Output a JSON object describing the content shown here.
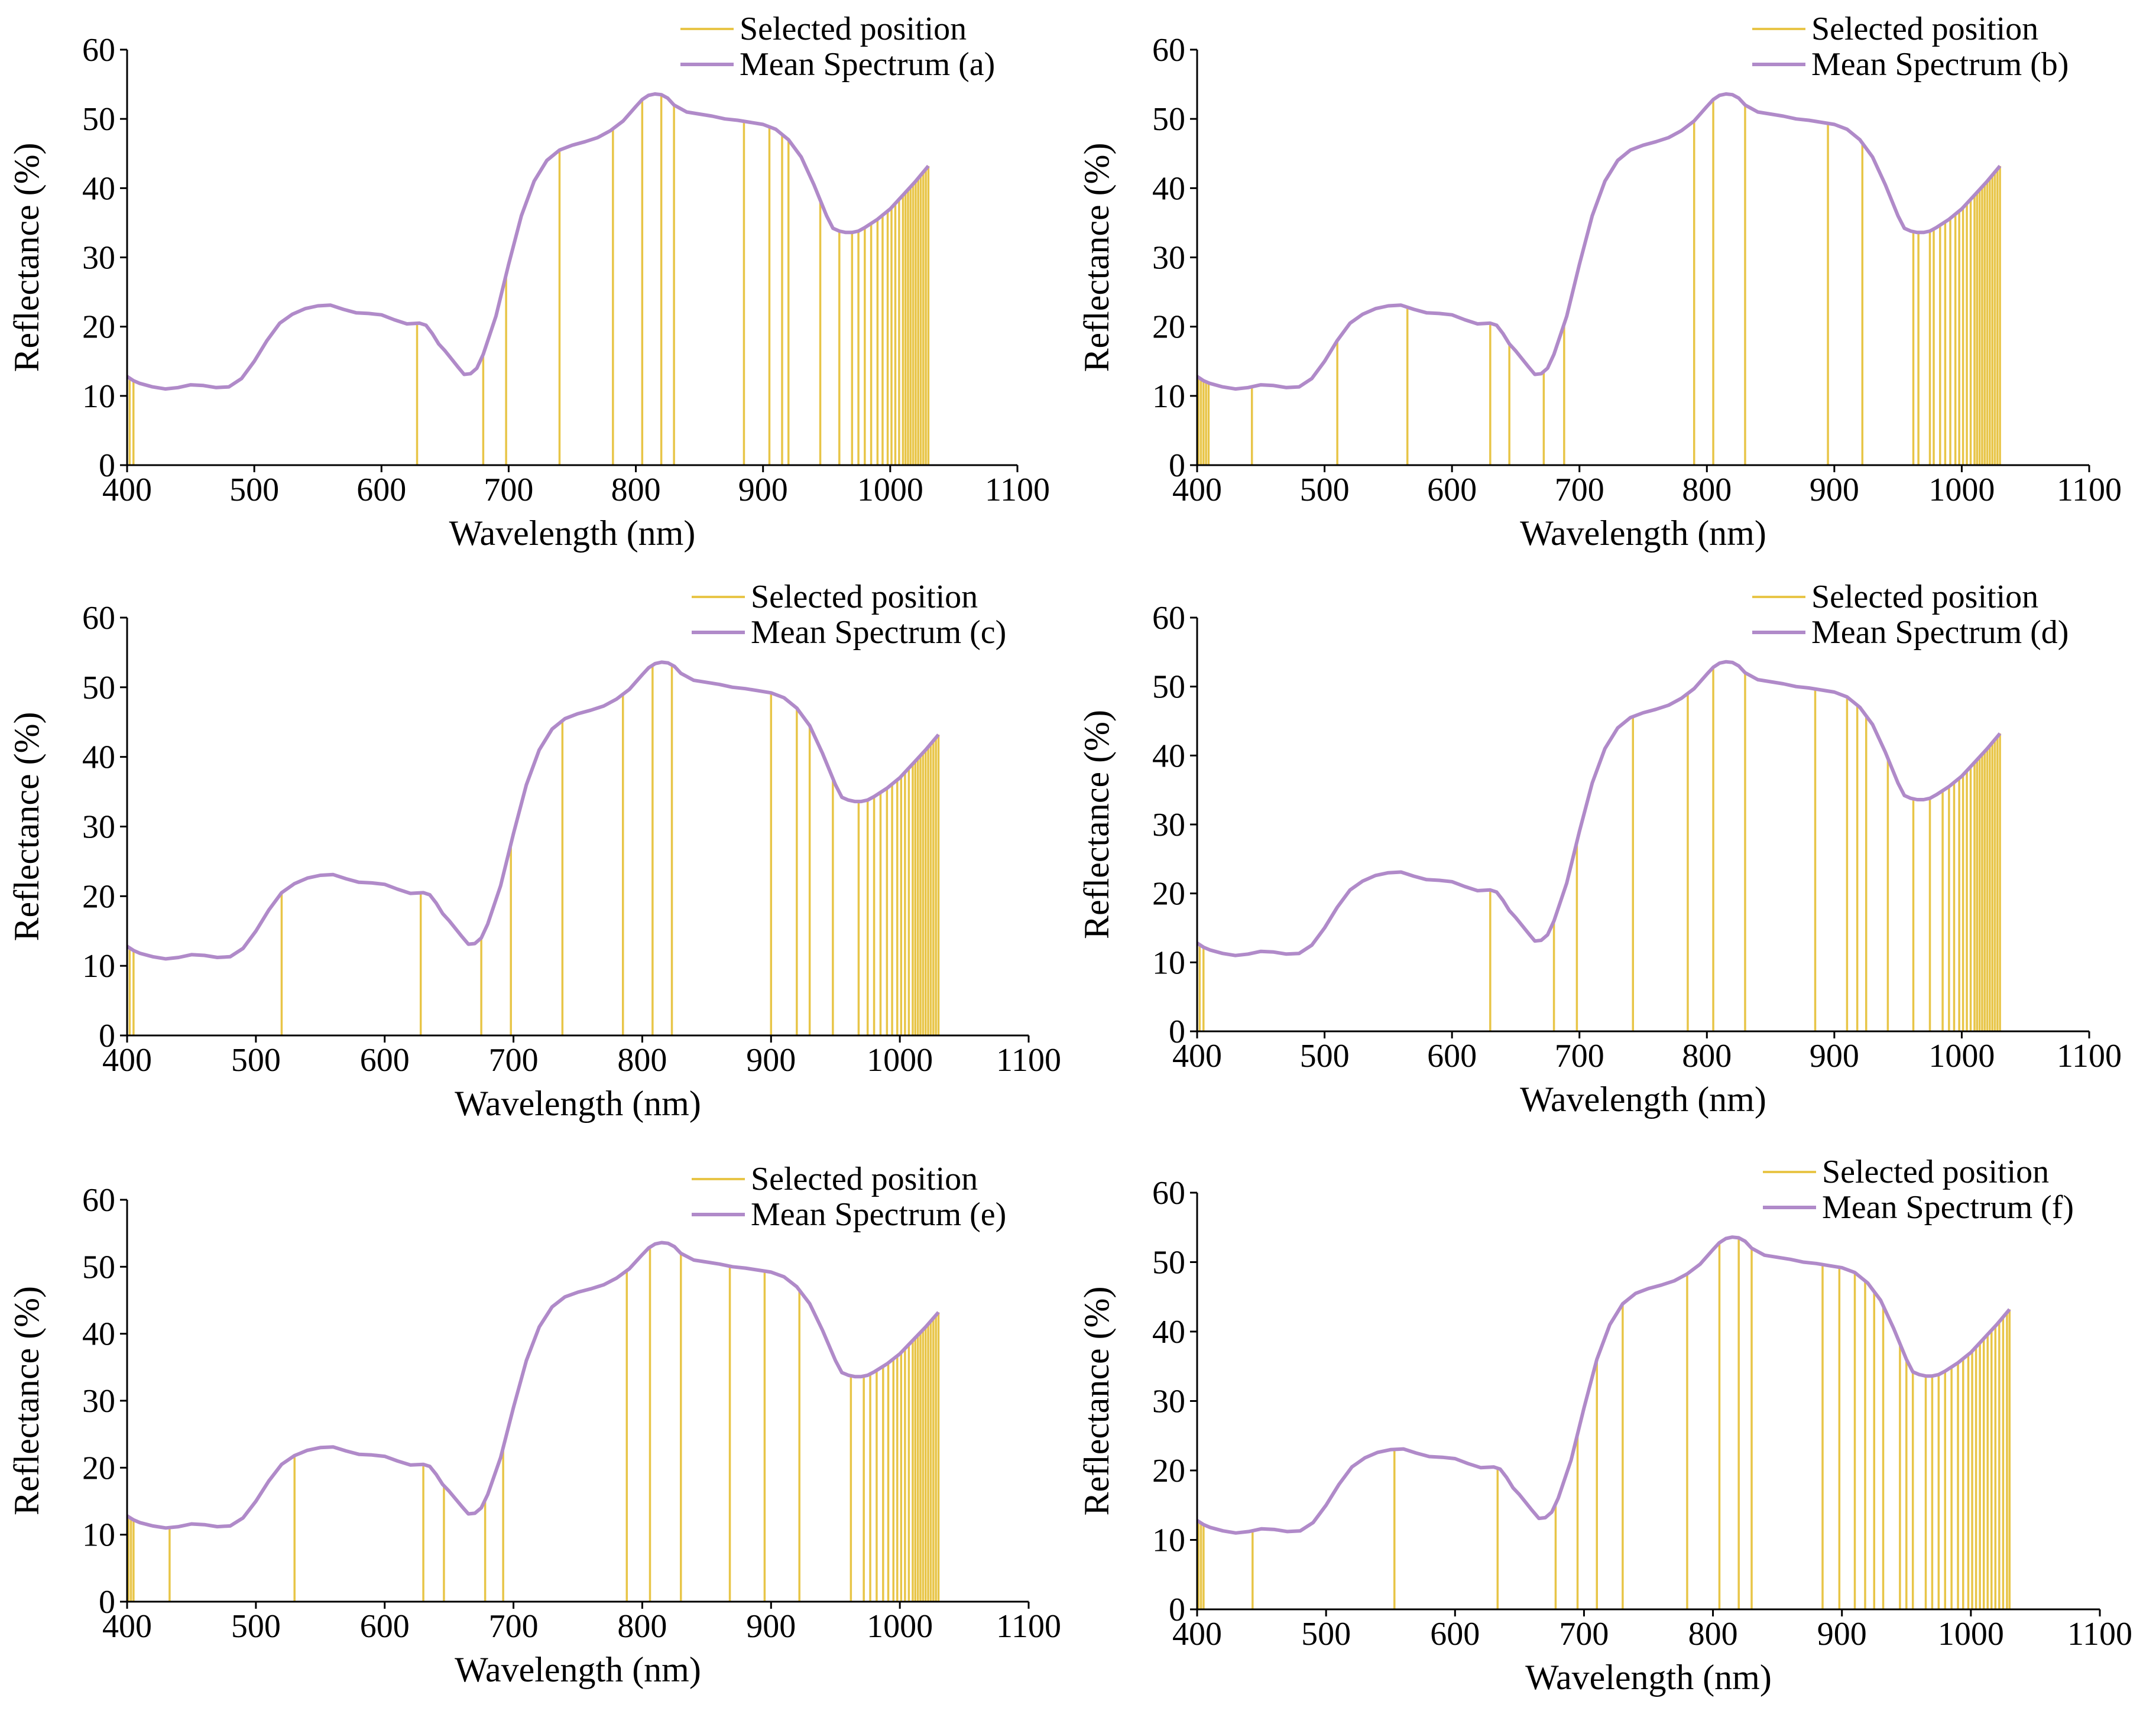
{
  "colors": {
    "selected": "#e8c547",
    "selected_dense": "#d6b84a",
    "spectrum": "#b08ac9",
    "axis": "#000000"
  },
  "spectrum_curve": {
    "x": [
      400,
      405,
      410,
      420,
      430,
      440,
      450,
      460,
      470,
      480,
      490,
      500,
      510,
      520,
      530,
      540,
      550,
      560,
      570,
      580,
      590,
      600,
      610,
      620,
      630,
      635,
      640,
      645,
      650,
      660,
      665,
      670,
      675,
      680,
      690,
      700,
      710,
      720,
      730,
      740,
      750,
      760,
      770,
      780,
      790,
      800,
      805,
      810,
      815,
      820,
      825,
      830,
      840,
      850,
      860,
      870,
      880,
      890,
      900,
      910,
      920,
      930,
      940,
      950,
      955,
      960,
      965,
      970,
      975,
      980,
      990,
      1000,
      1010,
      1020,
      1030
    ],
    "y": [
      12.8,
      12.2,
      11.8,
      11.3,
      11.0,
      11.2,
      11.6,
      11.5,
      11.2,
      11.3,
      12.5,
      15.0,
      18.0,
      20.5,
      21.8,
      22.6,
      23.0,
      23.1,
      22.5,
      22.0,
      21.9,
      21.7,
      21.0,
      20.4,
      20.5,
      20.2,
      19.0,
      17.5,
      16.5,
      14.2,
      13.1,
      13.2,
      14.0,
      16.0,
      21.5,
      29.0,
      36.0,
      41.0,
      44.0,
      45.5,
      46.2,
      46.7,
      47.3,
      48.3,
      49.7,
      51.8,
      52.8,
      53.4,
      53.6,
      53.5,
      53.0,
      52.0,
      51.0,
      50.7,
      50.4,
      50.0,
      49.8,
      49.5,
      49.2,
      48.5,
      47.0,
      44.5,
      40.5,
      36.0,
      34.2,
      33.8,
      33.6,
      33.6,
      33.8,
      34.3,
      35.5,
      37.0,
      39.0,
      41.0,
      43.2
    ]
  },
  "chart_data": [
    {
      "type": "line",
      "xlabel": "Wavelength (nm)",
      "ylabel": "Reflectance (%)",
      "xlim": [
        400,
        1100
      ],
      "ylim": [
        0,
        60
      ],
      "xticks": [
        "400",
        "500",
        "600",
        "700",
        "800",
        "900",
        "1000",
        "1100"
      ],
      "yticks": [
        "0",
        "10",
        "20",
        "30",
        "40",
        "50",
        "60"
      ],
      "grid": false,
      "legend_position": "top-right",
      "legend": [
        "Selected position",
        "Mean Spectrum (a)"
      ],
      "selected_positions": [
        402,
        405,
        628,
        680,
        698,
        740,
        782,
        805,
        820,
        830,
        885,
        905,
        915,
        920,
        945,
        960,
        970,
        975,
        980,
        985,
        990,
        994,
        998,
        1001,
        1004,
        1007,
        1010,
        1012,
        1014,
        1016,
        1018,
        1020,
        1022,
        1024,
        1026,
        1028,
        1030
      ]
    },
    {
      "type": "line",
      "xlabel": "Wavelength (nm)",
      "ylabel": "Reflectance (%)",
      "xlim": [
        400,
        1100
      ],
      "ylim": [
        0,
        60
      ],
      "xticks": [
        "400",
        "500",
        "600",
        "700",
        "800",
        "900",
        "1000",
        "1100"
      ],
      "yticks": [
        "0",
        "10",
        "20",
        "30",
        "40",
        "50",
        "60"
      ],
      "grid": false,
      "legend_position": "top-right",
      "legend": [
        "Selected position",
        "Mean Spectrum (b)"
      ],
      "selected_positions": [
        401,
        403,
        405,
        407,
        409,
        443,
        510,
        565,
        630,
        645,
        672,
        688,
        790,
        805,
        830,
        895,
        922,
        962,
        966,
        975,
        978,
        983,
        987,
        991,
        995,
        998,
        1001,
        1004,
        1007,
        1010,
        1012,
        1014,
        1016,
        1018,
        1020,
        1022,
        1024,
        1026,
        1028,
        1030
      ]
    },
    {
      "type": "line",
      "xlabel": "Wavelength (nm)",
      "ylabel": "Reflectance (%)",
      "xlim": [
        400,
        1100
      ],
      "ylim": [
        0,
        60
      ],
      "xticks": [
        "400",
        "500",
        "600",
        "700",
        "800",
        "900",
        "1000",
        "1100"
      ],
      "yticks": [
        "0",
        "10",
        "20",
        "30",
        "40",
        "50",
        "60"
      ],
      "grid": false,
      "legend_position": "top-right",
      "legend": [
        "Selected position",
        "Mean Spectrum (c)"
      ],
      "selected_positions": [
        402,
        405,
        520,
        628,
        675,
        698,
        738,
        785,
        808,
        823,
        900,
        920,
        930,
        948,
        968,
        975,
        980,
        985,
        990,
        994,
        998,
        1001,
        1004,
        1007,
        1010,
        1012,
        1014,
        1016,
        1018,
        1020,
        1022,
        1024,
        1026,
        1028,
        1030
      ]
    },
    {
      "type": "line",
      "xlabel": "Wavelength (nm)",
      "ylabel": "Reflectance (%)",
      "xlim": [
        400,
        1100
      ],
      "ylim": [
        0,
        60
      ],
      "xticks": [
        "400",
        "500",
        "600",
        "700",
        "800",
        "900",
        "1000",
        "1100"
      ],
      "yticks": [
        "0",
        "10",
        "20",
        "30",
        "40",
        "50",
        "60"
      ],
      "grid": false,
      "legend_position": "top-right",
      "legend": [
        "Selected position",
        "Mean Spectrum (d)"
      ],
      "selected_positions": [
        402,
        405,
        630,
        680,
        698,
        742,
        785,
        805,
        830,
        885,
        910,
        918,
        925,
        942,
        962,
        975,
        985,
        990,
        994,
        998,
        1001,
        1004,
        1007,
        1010,
        1012,
        1014,
        1016,
        1018,
        1020,
        1022,
        1024,
        1026,
        1028,
        1030
      ]
    },
    {
      "type": "line",
      "xlabel": "Wavelength (nm)",
      "ylabel": "Reflectance (%)",
      "xlim": [
        400,
        1100
      ],
      "ylim": [
        0,
        60
      ],
      "xticks": [
        "400",
        "500",
        "600",
        "700",
        "800",
        "900",
        "1000",
        "1100"
      ],
      "yticks": [
        "0",
        "10",
        "20",
        "30",
        "40",
        "50",
        "60"
      ],
      "grid": false,
      "legend_position": "top-right",
      "legend": [
        "Selected position",
        "Mean Spectrum (e)"
      ],
      "selected_positions": [
        401,
        403,
        405,
        433,
        530,
        630,
        646,
        678,
        692,
        788,
        806,
        830,
        868,
        895,
        922,
        962,
        972,
        977,
        982,
        987,
        991,
        995,
        998,
        1001,
        1004,
        1007,
        1010,
        1012,
        1014,
        1016,
        1018,
        1020,
        1022,
        1024,
        1026,
        1028,
        1030
      ]
    },
    {
      "type": "line",
      "xlabel": "Wavelength (nm)",
      "ylabel": "Reflectance (%)",
      "xlim": [
        400,
        1100
      ],
      "ylim": [
        0,
        60
      ],
      "xticks": [
        "400",
        "500",
        "600",
        "700",
        "800",
        "900",
        "1000",
        "1100"
      ],
      "yticks": [
        "0",
        "10",
        "20",
        "30",
        "40",
        "50",
        "60"
      ],
      "grid": false,
      "legend_position": "top-right",
      "legend": [
        "Selected position",
        "Mean Spectrum (f)"
      ],
      "selected_positions": [
        401,
        403,
        405,
        443,
        553,
        633,
        678,
        695,
        710,
        730,
        780,
        805,
        820,
        830,
        885,
        898,
        910,
        918,
        925,
        932,
        945,
        950,
        955,
        965,
        970,
        975,
        980,
        985,
        990,
        994,
        998,
        1001,
        1004,
        1007,
        1010,
        1013,
        1016,
        1019,
        1022,
        1025,
        1028,
        1030
      ]
    }
  ]
}
